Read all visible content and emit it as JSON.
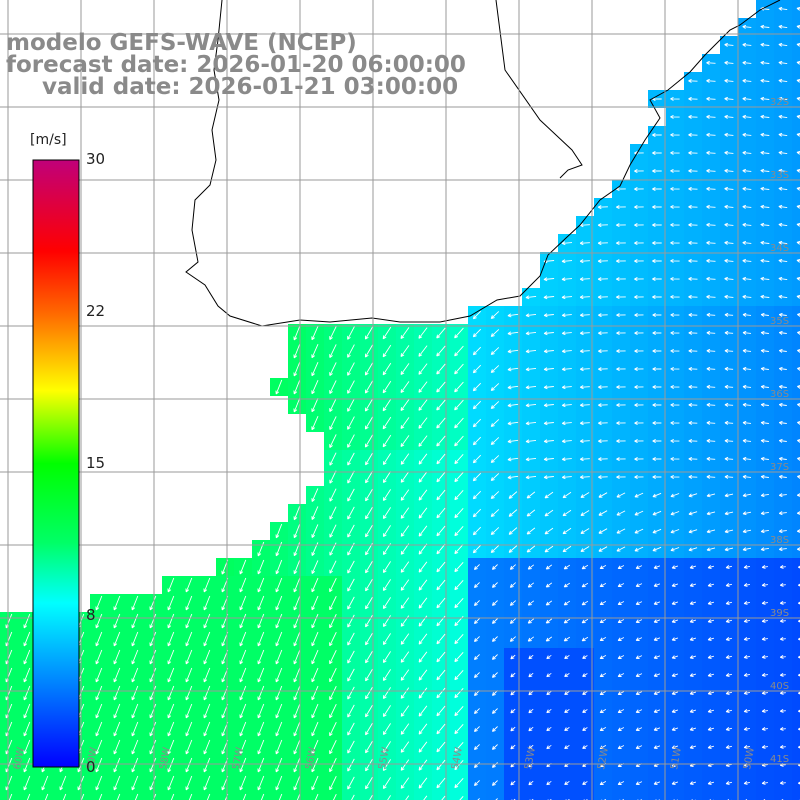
{
  "title": {
    "model": "modelo GEFS-WAVE (NCEP)",
    "forecast": "forecast date: 2026-01-20 06:00:00",
    "valid": "valid date: 2026-01-21 03:00:00"
  },
  "colorbar": {
    "unit": "[m/s]",
    "ticks": [
      "30",
      "22",
      "15",
      "8",
      "0"
    ]
  },
  "grid": {
    "lat_labels": [
      "32S",
      "33S",
      "34S",
      "35S",
      "36S",
      "37S",
      "38S",
      "39S",
      "40S",
      "41S"
    ],
    "lon_labels": [
      "60W",
      "59W",
      "58W",
      "57W",
      "56W",
      "55W",
      "54W",
      "53W",
      "52W",
      "51W",
      "50W"
    ]
  },
  "colors": {
    "land": "#ffffff",
    "coast": "#000000",
    "gridline": "#9a9a9a",
    "arrows": "#ffffff",
    "label_gray": "#8a8a8a"
  }
}
